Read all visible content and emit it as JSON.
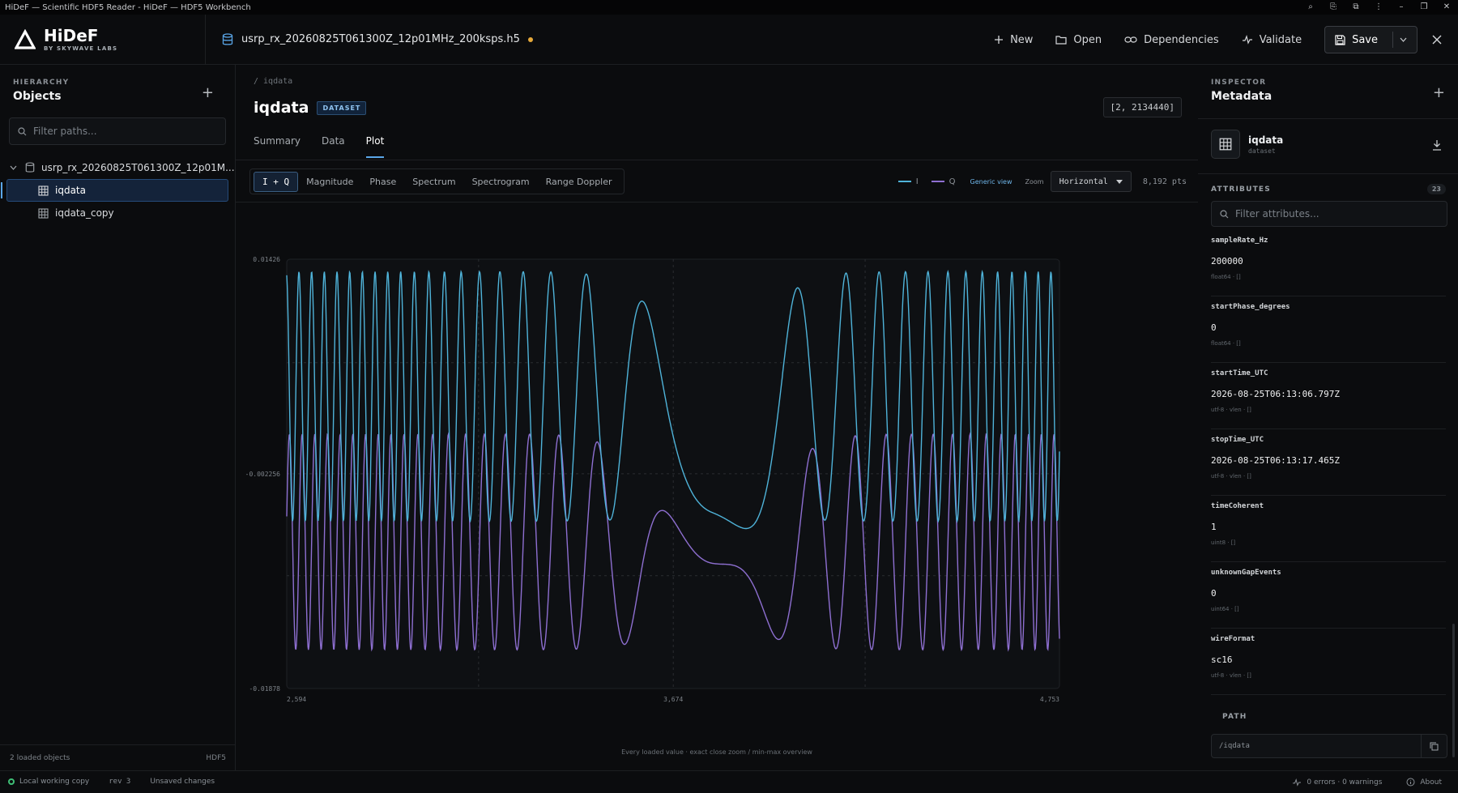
{
  "window": {
    "title": "HiDeF — Scientific HDF5 Reader - HiDeF — HDF5 Workbench"
  },
  "brand": {
    "name": "HiDeF",
    "sub": "BY SKYWAVE LABS"
  },
  "file": {
    "name": "usrp_rx_20260825T061300Z_12p01MHz_200ksps.h5"
  },
  "toolbar": {
    "new": "New",
    "open": "Open",
    "deps": "Dependencies",
    "validate": "Validate",
    "save": "Save"
  },
  "sidebar": {
    "eyebrow": "HIERARCHY",
    "title": "Objects",
    "filter_placeholder": "Filter paths...",
    "root": "usrp_rx_20260825T061300Z_12p01M...",
    "items": [
      {
        "label": "iqdata"
      },
      {
        "label": "iqdata_copy"
      }
    ],
    "footer_left": "2 loaded objects",
    "footer_right": "HDF5"
  },
  "main": {
    "breadcrumb": "/ iqdata",
    "title": "iqdata",
    "badge": "DATASET",
    "shape": "[2, 2134440]",
    "tabs": [
      "Summary",
      "Data",
      "Plot"
    ],
    "plot_tabs": [
      "I + Q",
      "Magnitude",
      "Phase",
      "Spectrum",
      "Spectrogram",
      "Range Doppler"
    ],
    "legend_i": "I",
    "legend_q": "Q",
    "generic_view": "Generic view",
    "zoom_label": "Zoom",
    "zoom_value": "Horizontal",
    "pts": "8,192 pts",
    "footer": "Every loaded value · exact close zoom / min-max overview"
  },
  "chart_data": {
    "type": "line",
    "xlim": [
      2594,
      4753
    ],
    "ylim": [
      -0.01878,
      0.01426
    ],
    "x_ticks": [
      "2,594",
      "3,674",
      "4,753"
    ],
    "y_ticks": [
      "0.01426",
      "-0.002256",
      "-0.01878"
    ],
    "series": [
      {
        "name": "I",
        "color": "#4fb3d9"
      },
      {
        "name": "Q",
        "color": "#8e6fd1"
      }
    ]
  },
  "inspector": {
    "eyebrow": "INSPECTOR",
    "title": "Metadata",
    "object_name": "iqdata",
    "object_type": "dataset",
    "attr_header": "ATTRIBUTES",
    "attr_count": "23",
    "attr_filter_placeholder": "Filter attributes...",
    "attributes": [
      {
        "key": "sampleRate_Hz",
        "value": "200000",
        "type": "float64 · []"
      },
      {
        "key": "startPhase_degrees",
        "value": "0",
        "type": "float64 · []"
      },
      {
        "key": "startTime_UTC",
        "value": "2026-08-25T06:13:06.797Z",
        "type": "utf-8 · vlen · []"
      },
      {
        "key": "stopTime_UTC",
        "value": "2026-08-25T06:13:17.465Z",
        "type": "utf-8 · vlen · []"
      },
      {
        "key": "timeCoherent",
        "value": "1",
        "type": "uint8 · []"
      },
      {
        "key": "unknownGapEvents",
        "value": "0",
        "type": "uint64 · []"
      },
      {
        "key": "wireFormat",
        "value": "sc16",
        "type": "utf-8 · vlen · []"
      }
    ],
    "path_header": "PATH",
    "path_value": "/iqdata"
  },
  "status": {
    "working": "Local working copy",
    "rev": "rev 3",
    "unsaved": "Unsaved changes",
    "errors": "0 errors · 0 warnings",
    "about": "About"
  }
}
